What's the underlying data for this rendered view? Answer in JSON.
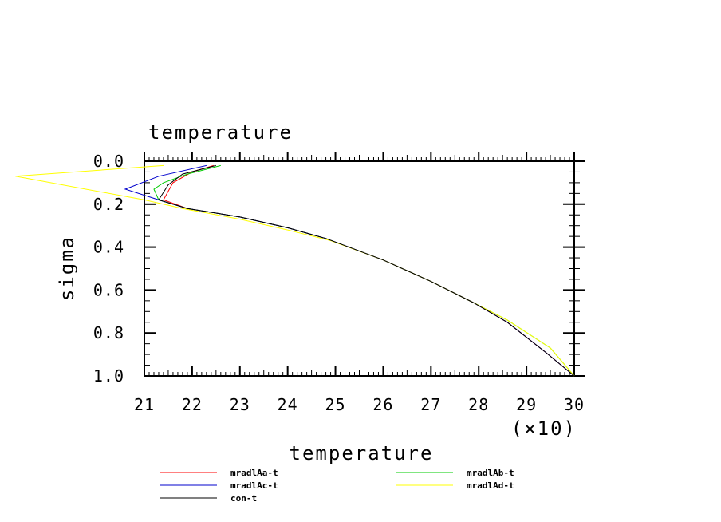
{
  "chart_data": {
    "type": "line",
    "title": "temperature",
    "xlabel": "temperature",
    "ylabel": "sigma",
    "x_scale_note": "(×10)",
    "xlim": [
      21,
      30
    ],
    "ylim": [
      0.0,
      1.0
    ],
    "y_inverted": true,
    "x_ticks": [
      "21",
      "22",
      "23",
      "24",
      "25",
      "26",
      "27",
      "28",
      "29",
      "30"
    ],
    "y_ticks": [
      "0.0",
      "0.2",
      "0.4",
      "0.6",
      "0.8",
      "1.0"
    ],
    "legend_position": "bottom",
    "series": [
      {
        "name": "mradlAa-t",
        "color": "#ff0000",
        "x": [
          22.45,
          22.0,
          21.6,
          21.4,
          21.9,
          23.0,
          24.0,
          24.8,
          26.0,
          27.0,
          27.9,
          28.6,
          29.4,
          30.0
        ],
        "y": [
          0.02,
          0.05,
          0.1,
          0.18,
          0.22,
          0.26,
          0.31,
          0.36,
          0.46,
          0.56,
          0.66,
          0.75,
          0.89,
          1.0
        ]
      },
      {
        "name": "mradlAb-t",
        "color": "#00cc00",
        "x": [
          22.6,
          21.9,
          21.4,
          21.2,
          21.3,
          21.9,
          23.0,
          24.0,
          24.8,
          26.0,
          27.0,
          27.9,
          28.6,
          29.5,
          30.0
        ],
        "y": [
          0.02,
          0.06,
          0.1,
          0.13,
          0.18,
          0.22,
          0.26,
          0.31,
          0.36,
          0.46,
          0.56,
          0.66,
          0.74,
          0.87,
          1.0
        ]
      },
      {
        "name": "mradlAc-t",
        "color": "#0000cc",
        "x": [
          22.3,
          21.3,
          20.6,
          21.3,
          21.9,
          23.0,
          24.0,
          24.8,
          26.0,
          27.0,
          27.9,
          28.6,
          29.4,
          30.0
        ],
        "y": [
          0.02,
          0.07,
          0.13,
          0.18,
          0.22,
          0.26,
          0.31,
          0.36,
          0.46,
          0.56,
          0.66,
          0.75,
          0.89,
          1.0
        ]
      },
      {
        "name": "mradlAd-t",
        "color": "#ffff00",
        "x": [
          21.4,
          18.3,
          21.0,
          21.8,
          23.0,
          24.0,
          24.9,
          26.0,
          27.0,
          27.9,
          28.6,
          29.5,
          30.0
        ],
        "y": [
          0.02,
          0.07,
          0.18,
          0.22,
          0.27,
          0.32,
          0.37,
          0.46,
          0.56,
          0.66,
          0.74,
          0.87,
          1.0
        ]
      },
      {
        "name": "con-t",
        "color": "#000000",
        "x": [
          22.5,
          21.8,
          21.5,
          21.3,
          21.9,
          23.0,
          24.0,
          24.8,
          26.0,
          27.0,
          27.9,
          28.6,
          29.4,
          30.0
        ],
        "y": [
          0.02,
          0.06,
          0.11,
          0.18,
          0.22,
          0.26,
          0.31,
          0.36,
          0.46,
          0.56,
          0.66,
          0.75,
          0.89,
          1.0
        ]
      }
    ]
  }
}
